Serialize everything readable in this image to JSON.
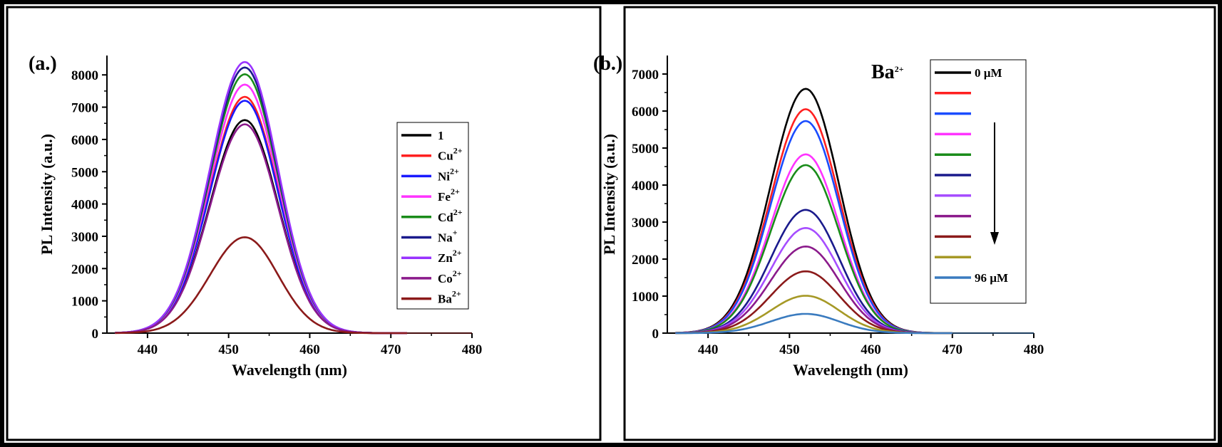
{
  "chart_data": [
    {
      "type": "line",
      "panel_label": "(a.)",
      "xlabel": "Wavelength (nm)",
      "ylabel": "PL Intensity (a.u.)",
      "xlim": [
        435,
        480
      ],
      "ylim": [
        0,
        8600
      ],
      "x_ticks": [
        440,
        450,
        460,
        470,
        480
      ],
      "y_ticks": [
        0,
        1000,
        2000,
        3000,
        4000,
        5000,
        6000,
        7000,
        8000
      ],
      "peak_wavelength": 452,
      "curve_range": [
        436,
        472
      ],
      "legend_position": "right",
      "series": [
        {
          "name": "1",
          "label_base": "1",
          "label_sup": "",
          "color": "#000000",
          "peak": 6600
        },
        {
          "name": "Cu2+",
          "label_base": "Cu",
          "label_sup": "2+",
          "color": "#ff2020",
          "peak": 7320
        },
        {
          "name": "Ni2+",
          "label_base": "Ni",
          "label_sup": "2+",
          "color": "#1a1aff",
          "peak": 7200
        },
        {
          "name": "Fe2+",
          "label_base": "Fe",
          "label_sup": "2+",
          "color": "#ff33ff",
          "peak": 7700
        },
        {
          "name": "Cd2+",
          "label_base": "Cd",
          "label_sup": "2+",
          "color": "#1a8c1a",
          "peak": 8020
        },
        {
          "name": "Na+",
          "label_base": "Na",
          "label_sup": "+",
          "color": "#1a1a8c",
          "peak": 8230
        },
        {
          "name": "Zn2+",
          "label_base": "Zn",
          "label_sup": "2+",
          "color": "#9933ff",
          "peak": 8400
        },
        {
          "name": "Co2+",
          "label_base": "Co",
          "label_sup": "2+",
          "color": "#8b1a8b",
          "peak": 6470
        },
        {
          "name": "Ba2+",
          "label_base": "Ba",
          "label_sup": "2+",
          "color": "#8b1a1a",
          "peak": 2970
        }
      ]
    },
    {
      "type": "line",
      "panel_label": "(b.)",
      "ion_label_base": "Ba",
      "ion_label_sup": "2+",
      "xlabel": "Wavelength (nm)",
      "ylabel": "PL Intensity (a.u.)",
      "xlim": [
        435,
        480
      ],
      "ylim": [
        0,
        7500
      ],
      "x_ticks": [
        440,
        450,
        460,
        470,
        480
      ],
      "y_ticks": [
        0,
        1000,
        2000,
        3000,
        4000,
        5000,
        6000,
        7000
      ],
      "peak_wavelength": 452,
      "curve_range": [
        436,
        470
      ],
      "legend_position": "right",
      "series": [
        {
          "name": "0 µM",
          "label": "0 µM",
          "color": "#000000",
          "peak": 6600
        },
        {
          "name": "",
          "label": "",
          "color": "#ff2020",
          "peak": 6050
        },
        {
          "name": "",
          "label": "",
          "color": "#1a4cff",
          "peak": 5730
        },
        {
          "name": "",
          "label": "",
          "color": "#ff33ff",
          "peak": 4830
        },
        {
          "name": "",
          "label": "",
          "color": "#1a8c1a",
          "peak": 4540
        },
        {
          "name": "",
          "label": "",
          "color": "#1a1a8c",
          "peak": 3330
        },
        {
          "name": "",
          "label": "",
          "color": "#a64dff",
          "peak": 2840
        },
        {
          "name": "",
          "label": "",
          "color": "#8b1a8b",
          "peak": 2340
        },
        {
          "name": "",
          "label": "",
          "color": "#8b1a1a",
          "peak": 1670
        },
        {
          "name": "",
          "label": "",
          "color": "#a69926",
          "peak": 1010
        },
        {
          "name": "96 µM",
          "label": "96 µM",
          "color": "#3a7bbf",
          "peak": 520
        }
      ]
    }
  ]
}
